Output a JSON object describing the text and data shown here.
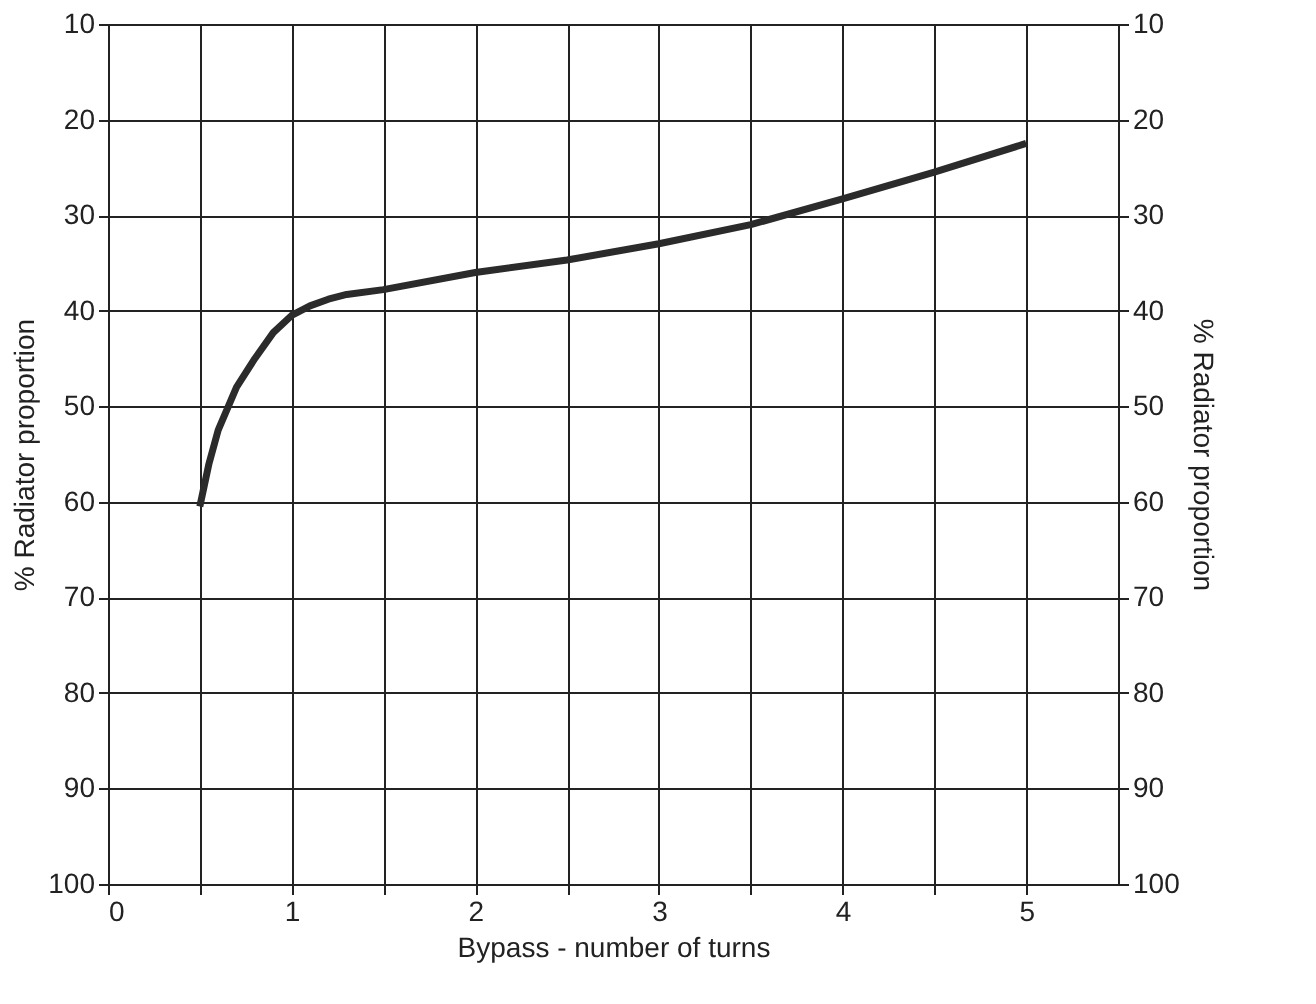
{
  "chart_data": {
    "type": "line",
    "xlabel": "Bypass - number of turns",
    "ylabel": "% Radiator proportion",
    "y2label": "% Radiator proportion",
    "series": [
      {
        "color": "#2b2b2b",
        "x": [
          0.5,
          0.55,
          0.6,
          0.7,
          0.8,
          0.9,
          1.0,
          1.1,
          1.2,
          1.3,
          1.5,
          2.0,
          2.5,
          3.0,
          3.5,
          4.0,
          4.5,
          5.0
        ],
        "values": [
          60.5,
          56,
          52.5,
          48,
          45,
          42.3,
          40.5,
          39.5,
          38.8,
          38.3,
          37.8,
          36,
          34.7,
          33,
          31,
          28.3,
          25.5,
          22.5
        ]
      }
    ],
    "xlim": [
      0,
      5.5
    ],
    "xticks": [
      0,
      {
        "value": 0.5,
        "label": null
      },
      1,
      {
        "value": 1.5,
        "label": null
      },
      2,
      {
        "value": 2.5,
        "label": null
      },
      3,
      {
        "value": 3.5,
        "label": null
      },
      4,
      {
        "value": 4.5,
        "label": null
      },
      5
    ],
    "ylim": [
      100,
      10
    ],
    "yticks": [
      10,
      20,
      30,
      40,
      50,
      60,
      70,
      80,
      90,
      100
    ],
    "y2lim": [
      100,
      10
    ],
    "y2ticks": [
      10,
      20,
      30,
      40,
      50,
      60,
      70,
      80,
      90,
      100
    ],
    "grid": true,
    "marker": "none",
    "line_style": "solid"
  }
}
